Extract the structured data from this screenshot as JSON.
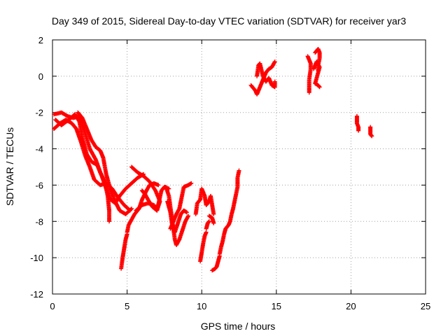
{
  "chart_data": {
    "type": "scatter",
    "title": "Day 349 of 2015, Sidereal Day-to-day VTEC variation (SDTVAR) for receiver yar3",
    "xlabel": "GPS time / hours",
    "ylabel": "SDTVAR / TECUs",
    "xlim": [
      0,
      25
    ],
    "ylim": [
      -12,
      2
    ],
    "xticks": [
      0,
      5,
      10,
      15,
      20,
      25
    ],
    "yticks": [
      -12,
      -10,
      -8,
      -6,
      -4,
      -2,
      0,
      2
    ],
    "grid": true,
    "marker": "plus",
    "colors": {
      "series": "#ff0000",
      "grid": "#a0a0a0",
      "axis": "#000000"
    },
    "tracks": [
      {
        "name": "track-1",
        "points": [
          [
            0.1,
            -2.1
          ],
          [
            0.6,
            -2.0
          ],
          [
            1.0,
            -2.2
          ],
          [
            1.4,
            -2.3
          ],
          [
            1.8,
            -2.2
          ],
          [
            2.1,
            -2.9
          ],
          [
            2.5,
            -4.0
          ],
          [
            2.9,
            -4.6
          ],
          [
            3.2,
            -5.3
          ],
          [
            3.5,
            -5.8
          ],
          [
            3.7,
            -6.6
          ],
          [
            3.8,
            -7.4
          ],
          [
            3.8,
            -8.0
          ]
        ]
      },
      {
        "name": "track-2",
        "points": [
          [
            0.1,
            -2.9
          ],
          [
            0.5,
            -2.6
          ],
          [
            0.9,
            -2.4
          ],
          [
            1.3,
            -2.6
          ],
          [
            1.6,
            -2.9
          ],
          [
            1.9,
            -3.6
          ],
          [
            2.2,
            -4.4
          ],
          [
            2.5,
            -5.0
          ],
          [
            2.8,
            -5.7
          ],
          [
            3.2,
            -6.0
          ],
          [
            3.6,
            -5.9
          ],
          [
            4.0,
            -6.2
          ],
          [
            4.4,
            -6.7
          ],
          [
            4.8,
            -7.1
          ],
          [
            5.2,
            -7.4
          ]
        ]
      },
      {
        "name": "track-3",
        "points": [
          [
            0.2,
            -2.4
          ],
          [
            0.6,
            -2.7
          ],
          [
            1.1,
            -2.4
          ],
          [
            1.5,
            -2.1
          ],
          [
            1.8,
            -2.5
          ],
          [
            2.0,
            -3.4
          ],
          [
            2.3,
            -4.3
          ],
          [
            2.6,
            -4.7
          ],
          [
            3.0,
            -4.9
          ],
          [
            3.3,
            -5.5
          ],
          [
            3.6,
            -6.2
          ],
          [
            3.9,
            -6.8
          ],
          [
            4.2,
            -7.0
          ],
          [
            4.5,
            -6.6
          ],
          [
            4.9,
            -6.2
          ],
          [
            5.3,
            -5.9
          ],
          [
            5.7,
            -5.6
          ],
          [
            6.1,
            -5.4
          ]
        ]
      },
      {
        "name": "track-4",
        "points": [
          [
            1.7,
            -2.0
          ],
          [
            2.0,
            -2.3
          ],
          [
            2.3,
            -2.9
          ],
          [
            2.6,
            -3.5
          ],
          [
            2.9,
            -3.9
          ],
          [
            3.2,
            -4.1
          ],
          [
            3.4,
            -4.5
          ],
          [
            3.6,
            -5.4
          ],
          [
            3.9,
            -6.3
          ],
          [
            4.2,
            -6.9
          ],
          [
            4.5,
            -7.4
          ],
          [
            4.9,
            -7.6
          ],
          [
            5.3,
            -7.3
          ]
        ]
      },
      {
        "name": "track-5",
        "points": [
          [
            4.6,
            -10.6
          ],
          [
            4.7,
            -10.0
          ],
          [
            4.8,
            -9.5
          ],
          [
            4.9,
            -9.0
          ],
          [
            5.0,
            -8.7
          ]
        ]
      },
      {
        "name": "track-6",
        "points": [
          [
            5.0,
            -8.6
          ],
          [
            5.1,
            -8.2
          ],
          [
            5.3,
            -7.9
          ],
          [
            5.5,
            -7.6
          ],
          [
            5.8,
            -7.3
          ],
          [
            6.0,
            -6.8
          ],
          [
            6.3,
            -6.3
          ],
          [
            6.5,
            -6.0
          ],
          [
            6.8,
            -5.9
          ],
          [
            7.1,
            -6.0
          ]
        ]
      },
      {
        "name": "track-7",
        "points": [
          [
            5.3,
            -5.0
          ],
          [
            5.7,
            -5.3
          ],
          [
            6.1,
            -5.5
          ],
          [
            6.5,
            -5.8
          ],
          [
            6.9,
            -6.3
          ],
          [
            7.2,
            -6.9
          ],
          [
            7.0,
            -7.4
          ],
          [
            6.7,
            -7.2
          ],
          [
            6.4,
            -6.8
          ],
          [
            6.2,
            -6.5
          ],
          [
            6.0,
            -6.3
          ]
        ]
      },
      {
        "name": "track-8",
        "points": [
          [
            5.6,
            -7.4
          ],
          [
            6.0,
            -7.1
          ],
          [
            6.4,
            -7.0
          ],
          [
            6.8,
            -7.1
          ],
          [
            7.0,
            -7.4
          ],
          [
            7.3,
            -6.3
          ],
          [
            7.5,
            -6.1
          ],
          [
            7.8,
            -6.2
          ]
        ]
      },
      {
        "name": "track-9",
        "points": [
          [
            7.6,
            -6.1
          ],
          [
            7.8,
            -6.6
          ],
          [
            7.9,
            -7.2
          ],
          [
            8.0,
            -7.8
          ],
          [
            8.1,
            -8.4
          ],
          [
            8.2,
            -9.0
          ],
          [
            8.3,
            -9.3
          ],
          [
            8.5,
            -9.0
          ],
          [
            8.7,
            -8.5
          ],
          [
            8.9,
            -8.0
          ],
          [
            9.1,
            -7.7
          ]
        ]
      },
      {
        "name": "track-10",
        "points": [
          [
            7.9,
            -8.4
          ],
          [
            8.1,
            -8.0
          ],
          [
            8.3,
            -7.6
          ],
          [
            8.5,
            -7.3
          ],
          [
            8.6,
            -6.9
          ],
          [
            8.8,
            -6.1
          ],
          [
            9.1,
            -6.0
          ],
          [
            9.3,
            -5.9
          ]
        ]
      },
      {
        "name": "track-11",
        "points": [
          [
            7.7,
            -6.9
          ],
          [
            7.9,
            -7.5
          ],
          [
            8.0,
            -8.1
          ],
          [
            8.2,
            -8.6
          ],
          [
            8.4,
            -8.1
          ],
          [
            8.6,
            -7.6
          ],
          [
            8.8,
            -7.4
          ],
          [
            9.0,
            -7.5
          ]
        ]
      },
      {
        "name": "track-12",
        "points": [
          [
            9.6,
            -7.6
          ],
          [
            9.7,
            -7.0
          ],
          [
            9.9,
            -6.8
          ],
          [
            10.0,
            -6.2
          ],
          [
            10.2,
            -6.6
          ],
          [
            10.3,
            -7.1
          ],
          [
            10.5,
            -6.9
          ],
          [
            10.6,
            -6.6
          ],
          [
            10.8,
            -7.6
          ]
        ]
      },
      {
        "name": "track-13",
        "points": [
          [
            10.5,
            -7.7
          ],
          [
            10.7,
            -7.8
          ],
          [
            10.8,
            -8.1
          ]
        ]
      },
      {
        "name": "track-14",
        "points": [
          [
            9.9,
            -10.2
          ],
          [
            10.0,
            -9.7
          ],
          [
            10.1,
            -9.2
          ],
          [
            10.2,
            -8.8
          ],
          [
            10.3,
            -8.6
          ]
        ]
      },
      {
        "name": "track-15",
        "points": [
          [
            10.3,
            -8.4
          ],
          [
            10.4,
            -8.1
          ],
          [
            10.5,
            -8.0
          ]
        ]
      },
      {
        "name": "track-16",
        "points": [
          [
            10.7,
            -10.7
          ],
          [
            10.9,
            -10.6
          ],
          [
            11.0,
            -10.5
          ],
          [
            11.1,
            -10.2
          ],
          [
            11.2,
            -9.9
          ]
        ]
      },
      {
        "name": "track-17",
        "points": [
          [
            11.2,
            -9.8
          ],
          [
            11.3,
            -9.4
          ],
          [
            11.4,
            -9.1
          ],
          [
            11.5,
            -8.7
          ],
          [
            11.6,
            -8.4
          ],
          [
            11.8,
            -8.2
          ],
          [
            11.9,
            -8.0
          ],
          [
            12.0,
            -7.6
          ],
          [
            12.1,
            -7.3
          ],
          [
            12.2,
            -6.9
          ],
          [
            12.3,
            -6.5
          ],
          [
            12.4,
            -6.1
          ],
          [
            12.4,
            -5.6
          ],
          [
            12.5,
            -5.2
          ]
        ]
      },
      {
        "name": "track-18",
        "points": [
          [
            13.3,
            -0.5
          ],
          [
            13.6,
            -0.8
          ],
          [
            13.7,
            -1.0
          ],
          [
            13.9,
            -0.6
          ],
          [
            14.1,
            -0.2
          ],
          [
            14.3,
            0.2
          ],
          [
            14.5,
            0.4
          ],
          [
            14.7,
            0.5
          ],
          [
            14.9,
            0.8
          ]
        ]
      },
      {
        "name": "track-19",
        "points": [
          [
            13.7,
            0.0
          ],
          [
            13.8,
            0.6
          ],
          [
            13.9,
            0.7
          ],
          [
            14.1,
            0.0
          ],
          [
            14.3,
            -0.3
          ],
          [
            14.5,
            -0.1
          ],
          [
            14.7,
            -0.5
          ],
          [
            14.9,
            -0.6
          ],
          [
            14.9,
            -0.3
          ]
        ]
      },
      {
        "name": "track-20",
        "points": [
          [
            17.1,
            1.1
          ],
          [
            17.2,
            0.9
          ],
          [
            17.3,
            0.7
          ],
          [
            17.3,
            0.4
          ],
          [
            17.2,
            -0.2
          ],
          [
            17.2,
            -0.5
          ],
          [
            17.2,
            -0.9
          ]
        ]
      },
      {
        "name": "track-21",
        "points": [
          [
            17.6,
            1.3
          ],
          [
            17.8,
            1.5
          ],
          [
            17.9,
            1.3
          ],
          [
            17.9,
            1.0
          ],
          [
            17.8,
            0.6
          ],
          [
            17.8,
            0.3
          ]
        ]
      },
      {
        "name": "track-22",
        "points": [
          [
            17.5,
            0.4
          ],
          [
            17.6,
            0.6
          ],
          [
            17.7,
            0.8
          ],
          [
            17.9,
            0.5
          ],
          [
            17.6,
            -0.4
          ],
          [
            17.8,
            -0.5
          ],
          [
            17.9,
            -0.6
          ]
        ]
      },
      {
        "name": "track-23",
        "points": [
          [
            20.4,
            -2.2
          ],
          [
            20.4,
            -2.4
          ],
          [
            20.4,
            -2.6
          ],
          [
            20.5,
            -2.8
          ],
          [
            20.5,
            -3.0
          ]
        ]
      },
      {
        "name": "track-24",
        "points": [
          [
            21.3,
            -2.8
          ],
          [
            21.3,
            -3.0
          ],
          [
            21.3,
            -3.2
          ],
          [
            21.4,
            -3.3
          ]
        ]
      }
    ]
  }
}
